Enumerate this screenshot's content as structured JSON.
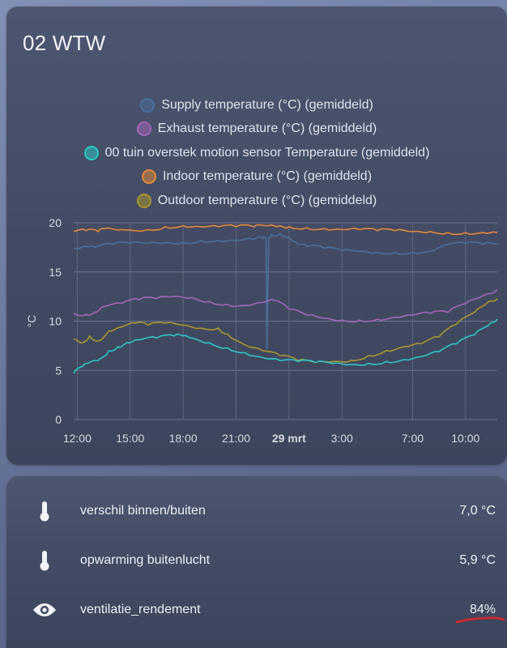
{
  "card": {
    "title": "02 WTW"
  },
  "legend": [
    {
      "label": "Supply temperature (°C) (gemiddeld)",
      "color": "#4a6f9c"
    },
    {
      "label": "Exhaust temperature (°C) (gemiddeld)",
      "color": "#a166b5"
    },
    {
      "label": "00 tuin overstek motion sensor Temperature (gemiddeld)",
      "color": "#2bc6c4"
    },
    {
      "label": "Indoor temperature (°C) (gemiddeld)",
      "color": "#e0883a"
    },
    {
      "label": "Outdoor temperature (°C) (gemiddeld)",
      "color": "#a8962d"
    }
  ],
  "chart_data": {
    "type": "line",
    "ylabel": "°C",
    "ylim": [
      0,
      20
    ],
    "yticks": [
      "0",
      "5",
      "10",
      "15",
      "20"
    ],
    "xlim": [
      11.8,
      35.8
    ],
    "xticks": [
      {
        "label": "12:00",
        "x": 12,
        "bold": false
      },
      {
        "label": "15:00",
        "x": 15,
        "bold": false
      },
      {
        "label": "18:00",
        "x": 18,
        "bold": false
      },
      {
        "label": "21:00",
        "x": 21,
        "bold": false
      },
      {
        "label": "29 mrt",
        "x": 24,
        "bold": true
      },
      {
        "label": "3:00",
        "x": 27,
        "bold": false
      },
      {
        "label": "7:00",
        "x": 31,
        "bold": false
      },
      {
        "label": "10:00",
        "x": 34,
        "bold": false
      }
    ],
    "series": [
      {
        "name": "Indoor temperature (°C) (gemiddeld)",
        "color": "#e0883a",
        "x": [
          11.8,
          12.5,
          13.2,
          13.5,
          14.5,
          16,
          17,
          18,
          19,
          20,
          21,
          22,
          22.8,
          23.5,
          24,
          25,
          26,
          27,
          28,
          29,
          30,
          31,
          32,
          33,
          34,
          35,
          35.8
        ],
        "y": [
          19.1,
          19.2,
          19.1,
          19.4,
          19.3,
          19.3,
          19.6,
          19.7,
          19.6,
          19.6,
          19.6,
          19.6,
          19.7,
          19.7,
          19.6,
          19.5,
          19.4,
          19.3,
          19.3,
          19.2,
          19.2,
          19.1,
          19.1,
          19.0,
          19.0,
          19.0,
          19.0
        ]
      },
      {
        "name": "Supply temperature (°C) (gemiddeld)",
        "color": "#4a6f9c",
        "x": [
          11.8,
          12.5,
          13,
          14,
          15,
          16,
          17,
          18,
          19,
          20,
          21,
          22,
          22.5,
          22.7,
          22.75,
          22.85,
          23,
          23.5,
          24,
          24.5,
          25,
          26,
          27,
          28,
          29,
          30,
          31,
          32,
          33,
          34,
          35,
          35.8
        ],
        "y": [
          17.4,
          17.6,
          17.5,
          17.8,
          17.9,
          17.9,
          18.0,
          18.0,
          18.2,
          18.2,
          18.2,
          18.3,
          18.4,
          18.4,
          7.2,
          18.5,
          18.8,
          18.9,
          18.5,
          17.8,
          17.6,
          17.4,
          17.2,
          17.1,
          17.0,
          17.0,
          17.0,
          17.1,
          17.8,
          17.9,
          17.8,
          17.8
        ],
        "spike": true
      },
      {
        "name": "Exhaust temperature (°C) (gemiddeld)",
        "color": "#a166b5",
        "x": [
          11.8,
          12.5,
          13,
          13.5,
          14.5,
          15.5,
          16.5,
          17.5,
          18.5,
          19.5,
          20.5,
          21.5,
          22.5,
          23.2,
          24,
          25,
          26,
          27,
          28,
          29,
          30,
          31,
          32,
          33,
          34,
          35,
          35.8
        ],
        "y": [
          10.8,
          10.7,
          10.9,
          11.5,
          11.8,
          12.2,
          12.3,
          12.5,
          12.4,
          12.0,
          11.7,
          11.6,
          11.9,
          12.1,
          11.2,
          10.6,
          10.3,
          10.1,
          10.1,
          10.2,
          10.4,
          10.6,
          10.8,
          10.9,
          11.8,
          12.6,
          13.2
        ]
      },
      {
        "name": "Outdoor temperature (°C) (gemiddeld)",
        "color": "#a8962d",
        "x": [
          11.8,
          12.3,
          12.7,
          13.2,
          13.8,
          14.5,
          15.3,
          16,
          17,
          18,
          19,
          20,
          20.5,
          21.5,
          22.5,
          23.5,
          24.5,
          25.5,
          26.5,
          27.5,
          28.5,
          29.5,
          30.5,
          31.5,
          32.5,
          33.5,
          34.5,
          35.3,
          35.8
        ],
        "y": [
          8.2,
          7.8,
          8.5,
          8.0,
          9.0,
          9.4,
          9.8,
          9.6,
          9.8,
          9.6,
          9.3,
          9.3,
          8.7,
          7.6,
          7.0,
          6.5,
          6.0,
          5.8,
          5.9,
          6.0,
          6.5,
          7.0,
          7.4,
          7.7,
          8.4,
          9.7,
          10.9,
          12.0,
          12.3
        ]
      },
      {
        "name": "00 tuin overstek motion sensor Temperature (gemiddeld)",
        "color": "#2bc6c4",
        "x": [
          11.8,
          12.3,
          12.8,
          13.3,
          13.8,
          14.3,
          14.8,
          15.5,
          16.5,
          17.5,
          18,
          18.5,
          19.5,
          20.5,
          21.5,
          22.5,
          23.5,
          24.5,
          25.5,
          26.5,
          27.5,
          28.5,
          29.5,
          30.5,
          31.5,
          32.5,
          33.5,
          34.5,
          35.3,
          35.8
        ],
        "y": [
          4.7,
          5.4,
          5.9,
          6.2,
          7.0,
          7.4,
          7.8,
          8.1,
          8.3,
          8.5,
          8.5,
          8.3,
          7.8,
          7.3,
          6.8,
          6.3,
          6.0,
          5.9,
          5.8,
          5.7,
          5.6,
          5.7,
          5.9,
          6.1,
          6.4,
          6.9,
          7.7,
          8.6,
          9.6,
          10.2
        ]
      }
    ]
  },
  "entities": [
    {
      "icon": "thermometer-icon",
      "name": "verschil binnen/buiten",
      "value": "7,0 °C"
    },
    {
      "icon": "thermometer-icon",
      "name": "opwarming buitenlucht",
      "value": "5,9 °C"
    },
    {
      "icon": "eye-icon",
      "name": "ventilatie_rendement",
      "value": "84%"
    }
  ],
  "annotation": {
    "color": "#d9252a"
  }
}
